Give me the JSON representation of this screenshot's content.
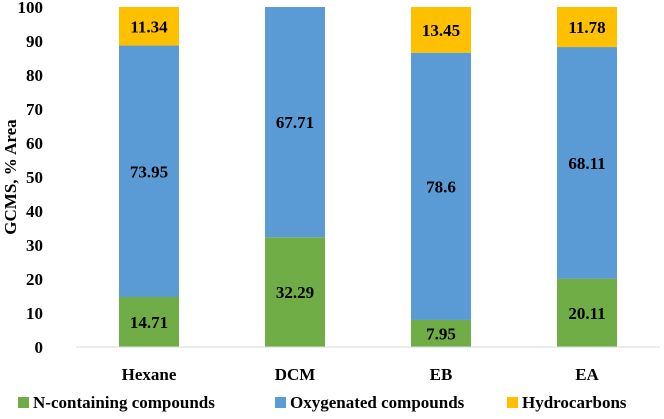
{
  "chart_data": {
    "type": "bar",
    "stacked": true,
    "ylabel": "GCMS, % Area",
    "xlabel": "",
    "ylim": [
      0,
      100
    ],
    "yticks": [
      0,
      10,
      20,
      30,
      40,
      50,
      60,
      70,
      80,
      90,
      100
    ],
    "categories": [
      "Hexane",
      "DCM",
      "EB",
      "EA"
    ],
    "series": [
      {
        "name": "N-containing compounds",
        "color": "#70ad47",
        "values": [
          14.71,
          32.29,
          7.95,
          20.11
        ]
      },
      {
        "name": "Oxygenated compounds",
        "color": "#5b9bd5",
        "values": [
          73.95,
          67.71,
          78.6,
          68.11
        ]
      },
      {
        "name": "Hydrocarbons",
        "color": "#ffc000",
        "values": [
          11.34,
          0,
          13.45,
          11.78
        ]
      }
    ],
    "data_labels": [
      [
        "14.71",
        "32.29",
        "7.95",
        "20.11"
      ],
      [
        "73.95",
        "67.71",
        "78.6",
        "68.11"
      ],
      [
        "11.34",
        "",
        "13.45",
        "11.78"
      ]
    ],
    "legend_position": "bottom",
    "grid": false
  }
}
